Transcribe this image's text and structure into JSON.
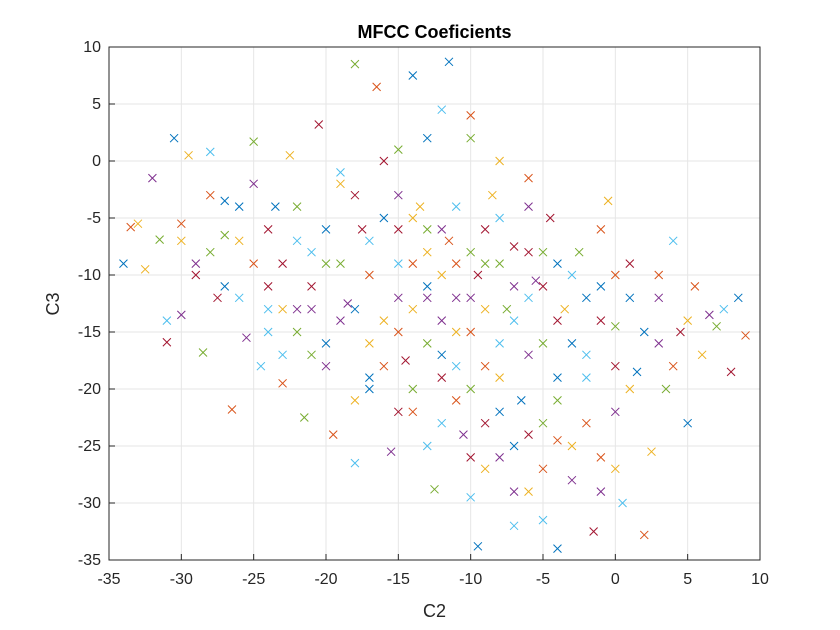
{
  "chart_data": {
    "type": "scatter",
    "title": "MFCC Coeficients",
    "xlabel": "C2",
    "ylabel": "C3",
    "xlim": [
      -35,
      10
    ],
    "ylim": [
      -35,
      10
    ],
    "xticks": [
      -35,
      -30,
      -25,
      -20,
      -15,
      -10,
      -5,
      0,
      5,
      10
    ],
    "yticks": [
      -35,
      -30,
      -25,
      -20,
      -15,
      -10,
      -5,
      0,
      5,
      10
    ],
    "xtick_labels": [
      "-35",
      "-30",
      "-25",
      "-20",
      "-15",
      "-10",
      "-5",
      "0",
      "5",
      "10"
    ],
    "ytick_labels": [
      "-35",
      "-30",
      "-25",
      "-20",
      "-15",
      "-10",
      "-5",
      "0",
      "5",
      "10"
    ],
    "grid": true,
    "marker": "x",
    "series_colors": [
      "#0072BD",
      "#D95319",
      "#EDB120",
      "#7E2F8E",
      "#77AC30",
      "#4DBEEE",
      "#A2142F"
    ],
    "points": [
      [
        -34,
        -9
      ],
      [
        -33.5,
        -5.8
      ],
      [
        -32.5,
        -9.5
      ],
      [
        -32,
        -1.5
      ],
      [
        -31.5,
        -6.9
      ],
      [
        -31,
        -14
      ],
      [
        -31,
        -15.9
      ],
      [
        -30.5,
        2
      ],
      [
        -30,
        -5.5
      ],
      [
        -29.5,
        0.5
      ],
      [
        -29,
        -9
      ],
      [
        -28.5,
        -16.8
      ],
      [
        -28,
        0.8
      ],
      [
        -27.5,
        -12
      ],
      [
        -27,
        -3.5
      ],
      [
        -26.5,
        -21.8
      ],
      [
        -26,
        -7
      ],
      [
        -25.5,
        -15.5
      ],
      [
        -25,
        1.7
      ],
      [
        -24.5,
        -18
      ],
      [
        -24,
        -11
      ],
      [
        -23.5,
        -4
      ],
      [
        -23,
        -19.5
      ],
      [
        -22.5,
        0.5
      ],
      [
        -22,
        -13
      ],
      [
        -21.5,
        -22.5
      ],
      [
        -21,
        -8
      ],
      [
        -20.5,
        3.2
      ],
      [
        -20,
        -16
      ],
      [
        -19.5,
        -24
      ],
      [
        -19,
        -2
      ],
      [
        -18.5,
        -12.5
      ],
      [
        -18,
        8.5
      ],
      [
        -18,
        -26.5
      ],
      [
        -17.5,
        -6
      ],
      [
        -17,
        -20
      ],
      [
        -16.5,
        6.5
      ],
      [
        -16,
        -14
      ],
      [
        -15.5,
        -25.5
      ],
      [
        -15,
        1
      ],
      [
        -15,
        -9
      ],
      [
        -14.5,
        -17.5
      ],
      [
        -14,
        7.5
      ],
      [
        -14,
        -22
      ],
      [
        -13.5,
        -4
      ],
      [
        -13,
        -12
      ],
      [
        -12.5,
        -28.8
      ],
      [
        -12,
        4.5
      ],
      [
        -12,
        -19
      ],
      [
        -11.5,
        8.7
      ],
      [
        -11.5,
        -7
      ],
      [
        -11,
        -15
      ],
      [
        -10.5,
        -24
      ],
      [
        -10,
        2
      ],
      [
        -10,
        -29.5
      ],
      [
        -9.5,
        -10
      ],
      [
        -9.5,
        -33.8
      ],
      [
        -9,
        -18
      ],
      [
        -8.5,
        -3
      ],
      [
        -8,
        -26
      ],
      [
        -7.5,
        -13
      ],
      [
        -7,
        -32
      ],
      [
        -7,
        -7.5
      ],
      [
        -6.5,
        -21
      ],
      [
        -6,
        -1.5
      ],
      [
        -6,
        -29
      ],
      [
        -5.5,
        -10.5
      ],
      [
        -5,
        -16
      ],
      [
        -5,
        -31.5
      ],
      [
        -4.5,
        -5
      ],
      [
        -4,
        -34
      ],
      [
        -4,
        -24.5
      ],
      [
        -3.5,
        -13
      ],
      [
        -3,
        -28
      ],
      [
        -2.5,
        -8
      ],
      [
        -2,
        -19
      ],
      [
        -1.5,
        -32.5
      ],
      [
        -1,
        -11
      ],
      [
        -1,
        -26
      ],
      [
        -0.5,
        -3.5
      ],
      [
        0,
        -22
      ],
      [
        0,
        -14.5
      ],
      [
        0.5,
        -30
      ],
      [
        1,
        -9
      ],
      [
        1.5,
        -18.5
      ],
      [
        2,
        -32.8
      ],
      [
        2.5,
        -25.5
      ],
      [
        3,
        -12
      ],
      [
        3.5,
        -20
      ],
      [
        4,
        -7
      ],
      [
        4.5,
        -15
      ],
      [
        5,
        -23
      ],
      [
        5.5,
        -11
      ],
      [
        6,
        -17
      ],
      [
        6.5,
        -13.5
      ],
      [
        7,
        -14.5
      ],
      [
        7.5,
        -13
      ],
      [
        8,
        -18.5
      ],
      [
        8.5,
        -12
      ],
      [
        9,
        -15.3
      ],
      [
        -33,
        -5.5
      ],
      [
        -30,
        -13.5
      ],
      [
        -27,
        -6.5
      ],
      [
        -24,
        -15
      ],
      [
        -21,
        -11
      ],
      [
        -18,
        -13
      ],
      [
        -15,
        -15
      ],
      [
        -13,
        -8
      ],
      [
        -11,
        -12
      ],
      [
        -9,
        -9
      ],
      [
        -7,
        -14
      ],
      [
        -5,
        -11
      ],
      [
        -3,
        -16
      ],
      [
        -1,
        -6
      ],
      [
        1,
        -20
      ],
      [
        3,
        -16
      ],
      [
        -28,
        -8
      ],
      [
        -26,
        -12
      ],
      [
        -23,
        -9
      ],
      [
        -20,
        -6
      ],
      [
        -17,
        -10
      ],
      [
        -14,
        -5
      ],
      [
        -12,
        -14
      ],
      [
        -10,
        -20
      ],
      [
        -8,
        -16
      ],
      [
        -6,
        -24
      ],
      [
        -4,
        -19
      ],
      [
        -2,
        -23
      ],
      [
        0,
        -27
      ],
      [
        -25,
        -2
      ],
      [
        -22,
        -4
      ],
      [
        -19,
        -1
      ],
      [
        -16,
        0
      ],
      [
        -13,
        2
      ],
      [
        -10,
        4
      ],
      [
        -8,
        0
      ],
      [
        -6,
        -4
      ],
      [
        -14,
        -20
      ],
      [
        -12,
        -23
      ],
      [
        -10,
        -26
      ],
      [
        -8,
        -22
      ],
      [
        -16,
        -18
      ],
      [
        -18,
        -21
      ],
      [
        -20,
        -18
      ],
      [
        -22,
        -15
      ],
      [
        -24,
        -13
      ],
      [
        -29,
        -10
      ],
      [
        -27,
        -11
      ],
      [
        -25,
        -9
      ],
      [
        -23,
        -13
      ],
      [
        -21,
        -13
      ],
      [
        -19,
        -9
      ],
      [
        -17,
        -7
      ],
      [
        -15,
        -6
      ],
      [
        -13,
        -11
      ],
      [
        -11,
        -9
      ],
      [
        -9,
        -13
      ],
      [
        -7,
        -11
      ],
      [
        -5,
        -8
      ],
      [
        -3,
        -10
      ],
      [
        -1,
        -14
      ],
      [
        1,
        -12
      ],
      [
        3,
        -10
      ],
      [
        5,
        -14
      ],
      [
        -15,
        -3
      ],
      [
        -13,
        -6
      ],
      [
        -11,
        -4
      ],
      [
        -9,
        -6
      ],
      [
        -12,
        -17
      ],
      [
        -10,
        -15
      ],
      [
        -8,
        -19
      ],
      [
        -6,
        -17
      ],
      [
        -4,
        -21
      ],
      [
        -2,
        -17
      ],
      [
        0,
        -18
      ],
      [
        2,
        -15
      ],
      [
        4,
        -18
      ],
      [
        -17,
        -16
      ],
      [
        -15,
        -12
      ],
      [
        -13,
        -16
      ],
      [
        -11,
        -18
      ],
      [
        -9,
        -23
      ],
      [
        -7,
        -25
      ],
      [
        -5,
        -27
      ],
      [
        -3,
        -25
      ],
      [
        -1,
        -29
      ],
      [
        -20,
        -9
      ],
      [
        -22,
        -7
      ],
      [
        -24,
        -6
      ],
      [
        -26,
        -4
      ],
      [
        -28,
        -3
      ],
      [
        -30,
        -7
      ],
      [
        -19,
        -14
      ],
      [
        -21,
        -17
      ],
      [
        -23,
        -17
      ],
      [
        -18,
        -3
      ],
      [
        -16,
        -5
      ],
      [
        -14,
        -9
      ],
      [
        -12,
        -10
      ],
      [
        -10,
        -12
      ],
      [
        -8,
        -9
      ],
      [
        -6,
        -12
      ],
      [
        -4,
        -14
      ],
      [
        -2,
        -12
      ],
      [
        0,
        -10
      ],
      [
        -14,
        -13
      ],
      [
        -12,
        -6
      ],
      [
        -10,
        -8
      ],
      [
        -8,
        -5
      ],
      [
        -6,
        -8
      ],
      [
        -4,
        -9
      ],
      [
        -11,
        -21
      ],
      [
        -9,
        -27
      ],
      [
        -7,
        -29
      ],
      [
        -5,
        -23
      ],
      [
        -13,
        -25
      ],
      [
        -15,
        -22
      ],
      [
        -17,
        -19
      ]
    ]
  }
}
